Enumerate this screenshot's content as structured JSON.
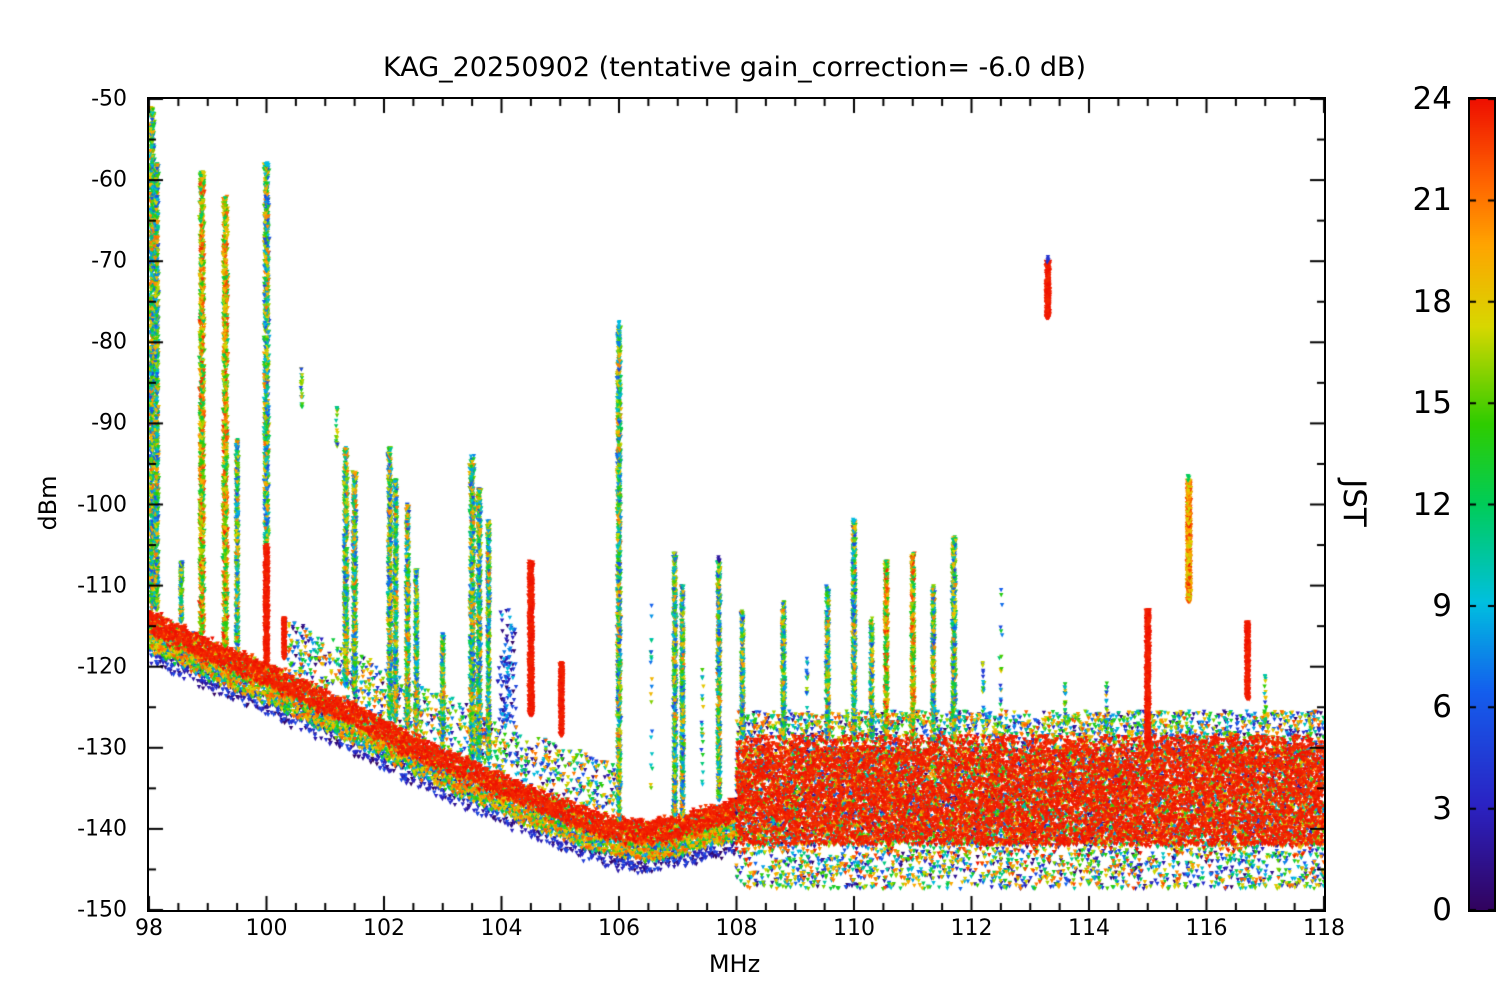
{
  "chart_data": {
    "type": "scatter",
    "title": "KAG_20250902 (tentative gain_correction= -6.0 dB)",
    "xlabel": "MHz",
    "ylabel": "dBm",
    "xlim": [
      98,
      118
    ],
    "ylim": [
      -150,
      -50
    ],
    "xticks": [
      98,
      100,
      102,
      104,
      106,
      108,
      110,
      112,
      114,
      116,
      118
    ],
    "yticks": [
      -50,
      -60,
      -70,
      -80,
      -90,
      -100,
      -110,
      -120,
      -130,
      -140,
      -150
    ],
    "x_minor_step": 0.5,
    "y_minor_step": 5,
    "grid": false,
    "axis_color": "#000000",
    "marker": "triangle-down",
    "colorbar": {
      "label": "JST",
      "range": [
        0,
        24
      ],
      "ticks": [
        0,
        3,
        6,
        9,
        12,
        15,
        18,
        21,
        24
      ],
      "position": "right"
    },
    "colormap": [
      [
        0,
        "#32035e"
      ],
      [
        0.13,
        "#2b23c4"
      ],
      [
        0.27,
        "#145fee"
      ],
      [
        0.38,
        "#00c0e0"
      ],
      [
        0.5,
        "#00cd5a"
      ],
      [
        0.6,
        "#2fcc00"
      ],
      [
        0.72,
        "#d8d800"
      ],
      [
        0.82,
        "#ffa500"
      ],
      [
        0.9,
        "#ff6400"
      ],
      [
        1,
        "#ef1000"
      ]
    ],
    "noise_floor": {
      "points": [
        [
          98,
          -113
        ],
        [
          98.5,
          -114.8
        ],
        [
          99,
          -116.5
        ],
        [
          99.5,
          -118
        ],
        [
          100,
          -119.5
        ],
        [
          100.5,
          -121.2
        ],
        [
          101,
          -123
        ],
        [
          101.5,
          -124.6
        ],
        [
          102,
          -126.4
        ],
        [
          102.5,
          -128.4
        ],
        [
          103,
          -130
        ],
        [
          103.5,
          -131.6
        ],
        [
          104,
          -133.2
        ],
        [
          104.5,
          -134.8
        ],
        [
          105,
          -136.2
        ],
        [
          105.5,
          -137.6
        ],
        [
          106,
          -138.6
        ],
        [
          106.5,
          -139
        ],
        [
          107,
          -138.4
        ],
        [
          107.5,
          -137.4
        ],
        [
          108,
          -136.4
        ]
      ],
      "red_thickness": 3,
      "scatter_below": 4.5,
      "scatter_above": 6.5
    },
    "band": {
      "x0": 108,
      "x1": 118,
      "scatter_top": -125.5,
      "red_top": -130,
      "red_bottom": -142,
      "scatter_bottom": -148
    },
    "spikes": [
      {
        "f": 98.05,
        "top": -51,
        "base": -113,
        "style": "mixed",
        "w": 0.05
      },
      {
        "f": 98.13,
        "top": -58,
        "base": -113,
        "style": "mixed",
        "w": 0.04
      },
      {
        "f": 98.55,
        "top": -107,
        "base": -114.5,
        "style": "mixed",
        "w": 0.03
      },
      {
        "f": 98.9,
        "top": -59,
        "base": -116,
        "style": "warm",
        "w": 0.05
      },
      {
        "f": 99.3,
        "top": -62,
        "base": -117.5,
        "style": "warm",
        "w": 0.05
      },
      {
        "f": 99.5,
        "top": -92,
        "base": -118,
        "style": "mixed",
        "w": 0.03
      },
      {
        "f": 100.0,
        "top": -58,
        "base": -105,
        "style": "mixed",
        "w": 0.05,
        "tip": 9
      },
      {
        "f": 100.0,
        "top": -105,
        "base": -119.5,
        "style": "red",
        "w": 0.04
      },
      {
        "f": 100.3,
        "top": -114,
        "base": -119,
        "style": "red",
        "w": 0.025
      },
      {
        "f": 100.6,
        "top": -83,
        "base": -88,
        "style": "sparse",
        "w": 0.02
      },
      {
        "f": 101.2,
        "top": -88,
        "base": -93,
        "style": "sparse",
        "w": 0.02
      },
      {
        "f": 101.35,
        "top": -93,
        "base": -122.5,
        "style": "mixed",
        "w": 0.04
      },
      {
        "f": 101.5,
        "top": -96,
        "base": -123.5,
        "style": "mixed",
        "w": 0.04
      },
      {
        "f": 102.1,
        "top": -93,
        "base": -126.5,
        "style": "mixed",
        "w": 0.04
      },
      {
        "f": 102.2,
        "top": -97,
        "base": -126.8,
        "style": "mixed",
        "w": 0.03
      },
      {
        "f": 102.4,
        "top": -100,
        "base": -127.5,
        "style": "mixed",
        "w": 0.035
      },
      {
        "f": 102.55,
        "top": -108,
        "base": -128,
        "style": "mixed",
        "w": 0.03
      },
      {
        "f": 103.0,
        "top": -116,
        "base": -130,
        "style": "mixed",
        "w": 0.03
      },
      {
        "f": 103.5,
        "top": -94,
        "base": -131.5,
        "style": "mixed",
        "w": 0.05
      },
      {
        "f": 103.62,
        "top": -98,
        "base": -131.5,
        "style": "mixed",
        "w": 0.04
      },
      {
        "f": 103.78,
        "top": -102,
        "base": -131.5,
        "style": "mixed",
        "w": 0.03
      },
      {
        "f": 104.1,
        "top": -113,
        "base": -127,
        "style": "cool",
        "w": 0.18
      },
      {
        "f": 104.5,
        "top": -107,
        "base": -126,
        "style": "red",
        "w": 0.045
      },
      {
        "f": 105.02,
        "top": -119.5,
        "base": -128.5,
        "style": "red",
        "w": 0.035
      },
      {
        "f": 106.0,
        "top": -78,
        "base": -139,
        "style": "mixed",
        "w": 0.04,
        "tip": 9
      },
      {
        "f": 106.55,
        "top": -112,
        "base": -139,
        "style": "sparse",
        "w": 0.02
      },
      {
        "f": 106.95,
        "top": -106,
        "base": -138.5,
        "style": "mixed",
        "w": 0.035
      },
      {
        "f": 107.08,
        "top": -110,
        "base": -138.5,
        "style": "mixed",
        "w": 0.03
      },
      {
        "f": 107.42,
        "top": -120,
        "base": -137.5,
        "style": "sparse",
        "w": 0.02
      },
      {
        "f": 107.7,
        "top": -107,
        "base": -136.5,
        "style": "mixed",
        "w": 0.035,
        "tip": 2
      },
      {
        "f": 108.1,
        "top": -113,
        "base": -129,
        "style": "mixed",
        "w": 0.03
      },
      {
        "f": 108.8,
        "top": -112,
        "base": -129,
        "style": "mixed",
        "w": 0.035
      },
      {
        "f": 109.2,
        "top": -119,
        "base": -129,
        "style": "sparse",
        "w": 0.02
      },
      {
        "f": 109.55,
        "top": -110,
        "base": -129,
        "style": "mixed",
        "w": 0.035
      },
      {
        "f": 110.0,
        "top": -102,
        "base": -129,
        "style": "mixed",
        "w": 0.035,
        "tip": 9
      },
      {
        "f": 110.3,
        "top": -114,
        "base": -129,
        "style": "mixed",
        "w": 0.03
      },
      {
        "f": 110.55,
        "top": -107,
        "base": -129,
        "style": "warm",
        "w": 0.035
      },
      {
        "f": 111.0,
        "top": -106,
        "base": -129,
        "style": "warm",
        "w": 0.035
      },
      {
        "f": 111.35,
        "top": -110,
        "base": -129,
        "style": "mixed",
        "w": 0.03
      },
      {
        "f": 111.7,
        "top": -104,
        "base": -129,
        "style": "mixed",
        "w": 0.04
      },
      {
        "f": 112.2,
        "top": -119,
        "base": -127,
        "style": "sparse",
        "w": 0.02
      },
      {
        "f": 112.5,
        "top": -110,
        "base": -127,
        "style": "sparse",
        "w": 0.03
      },
      {
        "f": 113.3,
        "top": -70,
        "base": -77,
        "style": "red",
        "w": 0.04,
        "tip": 4
      },
      {
        "f": 113.6,
        "top": -122,
        "base": -127.5,
        "style": "sparse",
        "w": 0.02
      },
      {
        "f": 114.3,
        "top": -122,
        "base": -127.5,
        "style": "sparse",
        "w": 0.02
      },
      {
        "f": 115.0,
        "top": -113,
        "base": -130,
        "style": "red",
        "w": 0.04
      },
      {
        "f": 115.7,
        "top": -97,
        "base": -112,
        "style": "warm_bar",
        "w": 0.04,
        "tip": 12
      },
      {
        "f": 116.7,
        "top": -114.5,
        "base": -124,
        "style": "red",
        "w": 0.035
      },
      {
        "f": 117.0,
        "top": -121,
        "base": -127,
        "style": "sparse",
        "w": 0.02
      }
    ]
  }
}
